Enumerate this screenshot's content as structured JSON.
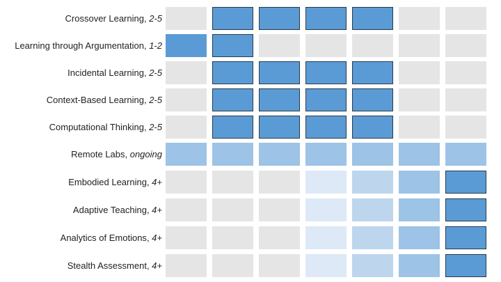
{
  "chart_data": {
    "type": "heatmap",
    "title": "",
    "xlabel": "",
    "ylabel": "",
    "columns": 7,
    "level_colors": {
      "0": "#e6e5e6",
      "1": "#dde9f6",
      "2": "#bdd6ee",
      "3": "#9dc3e6",
      "4": "#5b9bd5"
    },
    "border_color": "#2a3a4a",
    "rows": [
      {
        "name": "Crossover Learning",
        "timing": "2-5",
        "values": [
          0,
          4,
          4,
          4,
          4,
          0,
          0
        ],
        "outlined": [
          false,
          true,
          true,
          true,
          true,
          false,
          false
        ]
      },
      {
        "name": "Learning through Argumentation",
        "timing": "1-2",
        "values": [
          4,
          4,
          0,
          0,
          0,
          0,
          0
        ],
        "outlined": [
          false,
          true,
          false,
          false,
          false,
          false,
          false
        ]
      },
      {
        "name": "Incidental Learning",
        "timing": "2-5",
        "values": [
          0,
          4,
          4,
          4,
          4,
          0,
          0
        ],
        "outlined": [
          false,
          true,
          true,
          true,
          true,
          false,
          false
        ]
      },
      {
        "name": "Context-Based Learning",
        "timing": "2-5",
        "values": [
          0,
          4,
          4,
          4,
          4,
          0,
          0
        ],
        "outlined": [
          false,
          true,
          true,
          true,
          true,
          false,
          false
        ]
      },
      {
        "name": "Computational Thinking",
        "timing": "2-5",
        "values": [
          0,
          4,
          4,
          4,
          4,
          0,
          0
        ],
        "outlined": [
          false,
          true,
          true,
          true,
          true,
          false,
          false
        ]
      },
      {
        "name": "Remote Labs",
        "timing": "ongoing",
        "values": [
          3,
          3,
          3,
          3,
          3,
          3,
          3
        ],
        "outlined": [
          false,
          false,
          false,
          false,
          false,
          false,
          false
        ]
      },
      {
        "name": "Embodied Learning",
        "timing": "4+",
        "values": [
          0,
          0,
          0,
          1,
          2,
          3,
          4
        ],
        "outlined": [
          false,
          false,
          false,
          false,
          false,
          false,
          true
        ]
      },
      {
        "name": "Adaptive Teaching",
        "timing": "4+",
        "values": [
          0,
          0,
          0,
          1,
          2,
          3,
          4
        ],
        "outlined": [
          false,
          false,
          false,
          false,
          false,
          false,
          true
        ]
      },
      {
        "name": "Analytics of Emotions",
        "timing": "4+",
        "values": [
          0,
          0,
          0,
          1,
          2,
          3,
          4
        ],
        "outlined": [
          false,
          false,
          false,
          false,
          false,
          false,
          true
        ]
      },
      {
        "name": "Stealth Assessment",
        "timing": "4+",
        "values": [
          0,
          0,
          0,
          1,
          2,
          3,
          4
        ],
        "outlined": [
          false,
          false,
          false,
          false,
          false,
          false,
          true
        ]
      }
    ]
  }
}
